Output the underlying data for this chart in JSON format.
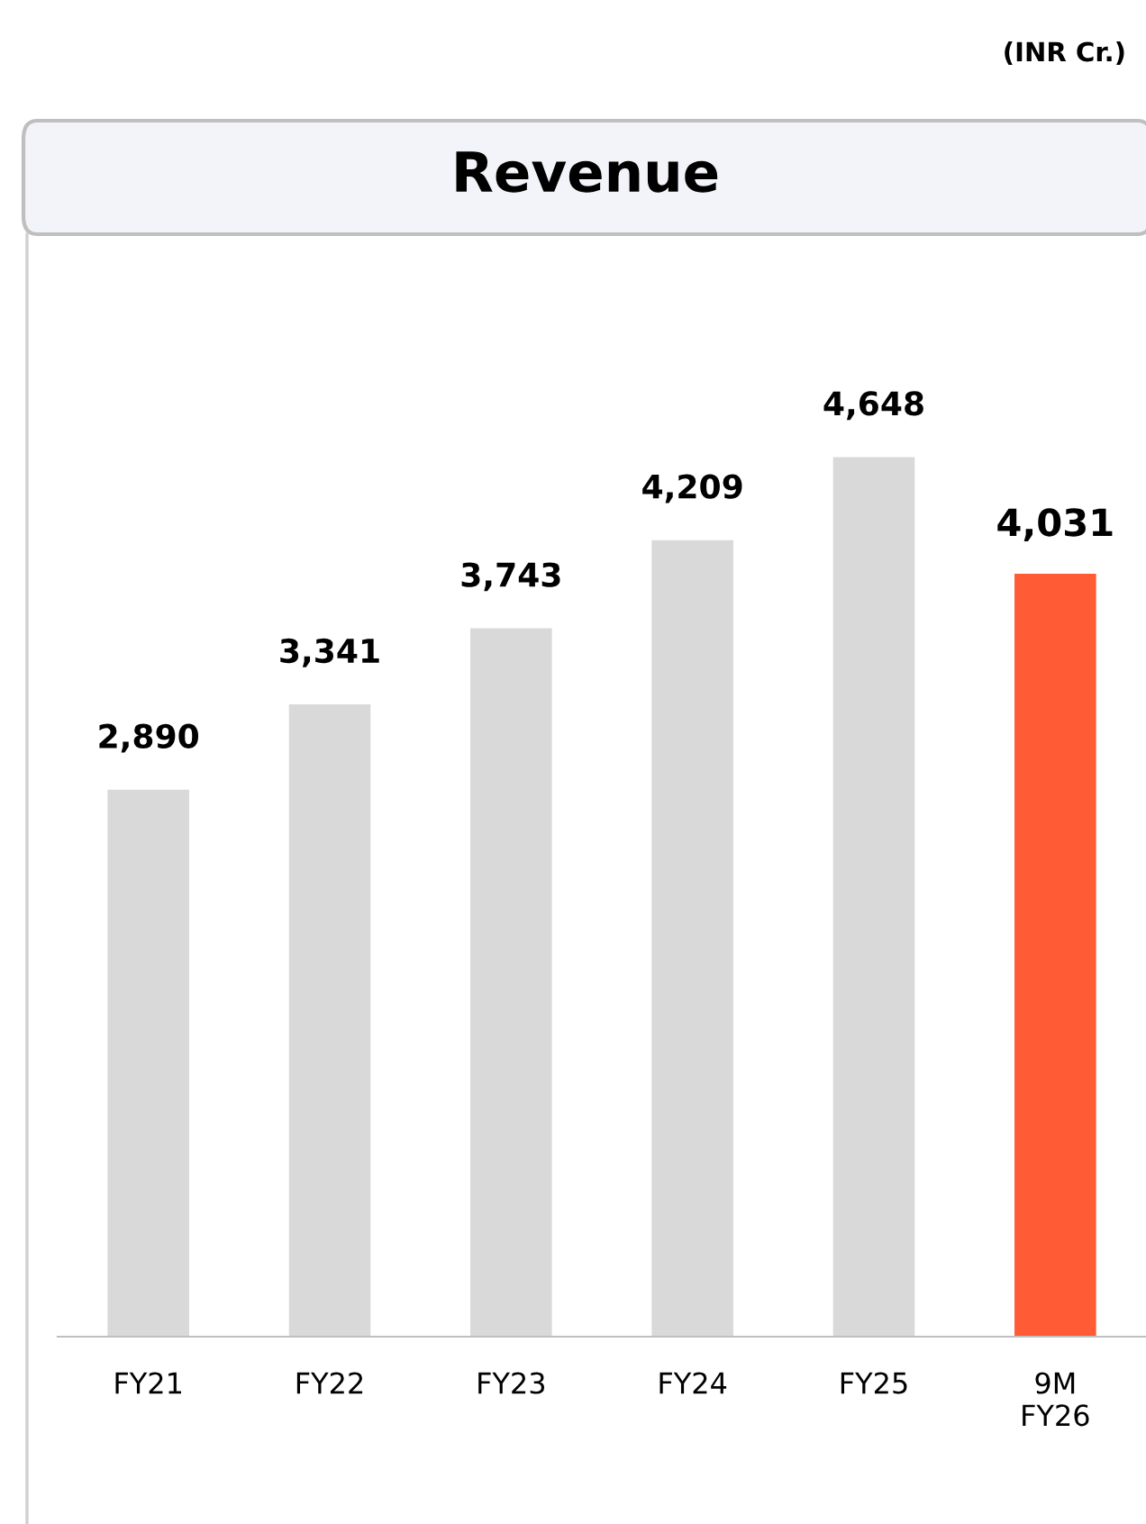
{
  "chart_data": {
    "type": "bar",
    "title": "Revenue",
    "annotations": [
      "(INR Cr.)"
    ],
    "categories": [
      "FY21",
      "FY22",
      "FY23",
      "FY24",
      "FY25",
      "9M\nFY26"
    ],
    "values": [
      2890,
      3341,
      3743,
      4209,
      4648,
      4031
    ],
    "colors": [
      "#d9d9d9",
      "#d9d9d9",
      "#d9d9d9",
      "#d9d9d9",
      "#d9d9d9",
      "#ff5b35"
    ],
    "value_labels": [
      "2,890",
      "3,341",
      "3,743",
      "4,209",
      "4,648",
      "4,031"
    ],
    "grid": false,
    "legend": false
  }
}
